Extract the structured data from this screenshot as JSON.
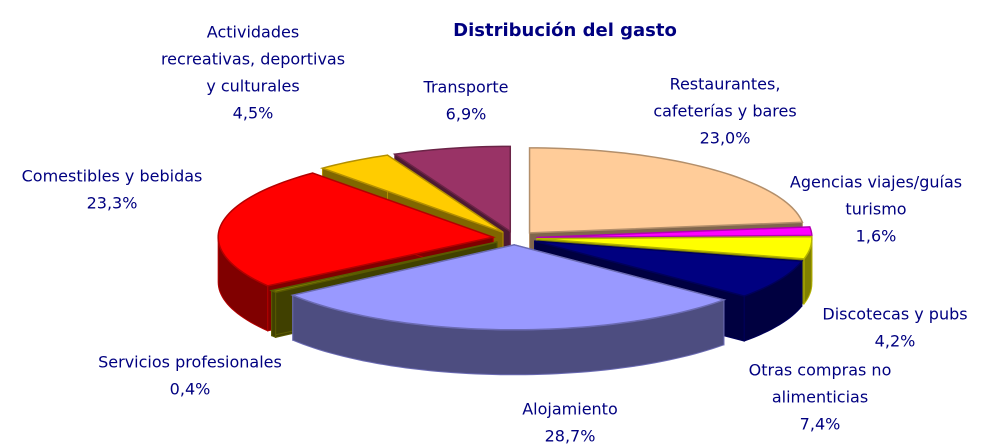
{
  "chart_data": {
    "type": "pie3d",
    "title": "Distribución del gasto",
    "categories": [
      [
        "Restaurantes,",
        "cafeterías y bares"
      ],
      [
        "Agencias viajes/guías",
        "turismo"
      ],
      [
        "Discotecas y pubs"
      ],
      [
        "Otras compras no",
        "alimenticias"
      ],
      [
        "Alojamiento"
      ],
      [
        "Servicios profesionales"
      ],
      [
        "Comestibles y bebidas"
      ],
      [
        "Actividades",
        "recreativas, deportivas",
        "y culturales"
      ],
      [
        "Transporte"
      ]
    ],
    "values": [
      23.0,
      1.6,
      4.2,
      7.4,
      28.7,
      0.4,
      23.3,
      4.5,
      6.9
    ],
    "value_labels": [
      "23,0%",
      "1,6%",
      "4,2%",
      "7,4%",
      "28,7%",
      "0,4%",
      "23,3%",
      "4,5%",
      "6,9%"
    ],
    "colors": [
      "#FFCC99",
      "#FF00FF",
      "#FFFF00",
      "#000080",
      "#9999FF",
      "#808000",
      "#FF0000",
      "#FFCC00",
      "#993366"
    ]
  }
}
